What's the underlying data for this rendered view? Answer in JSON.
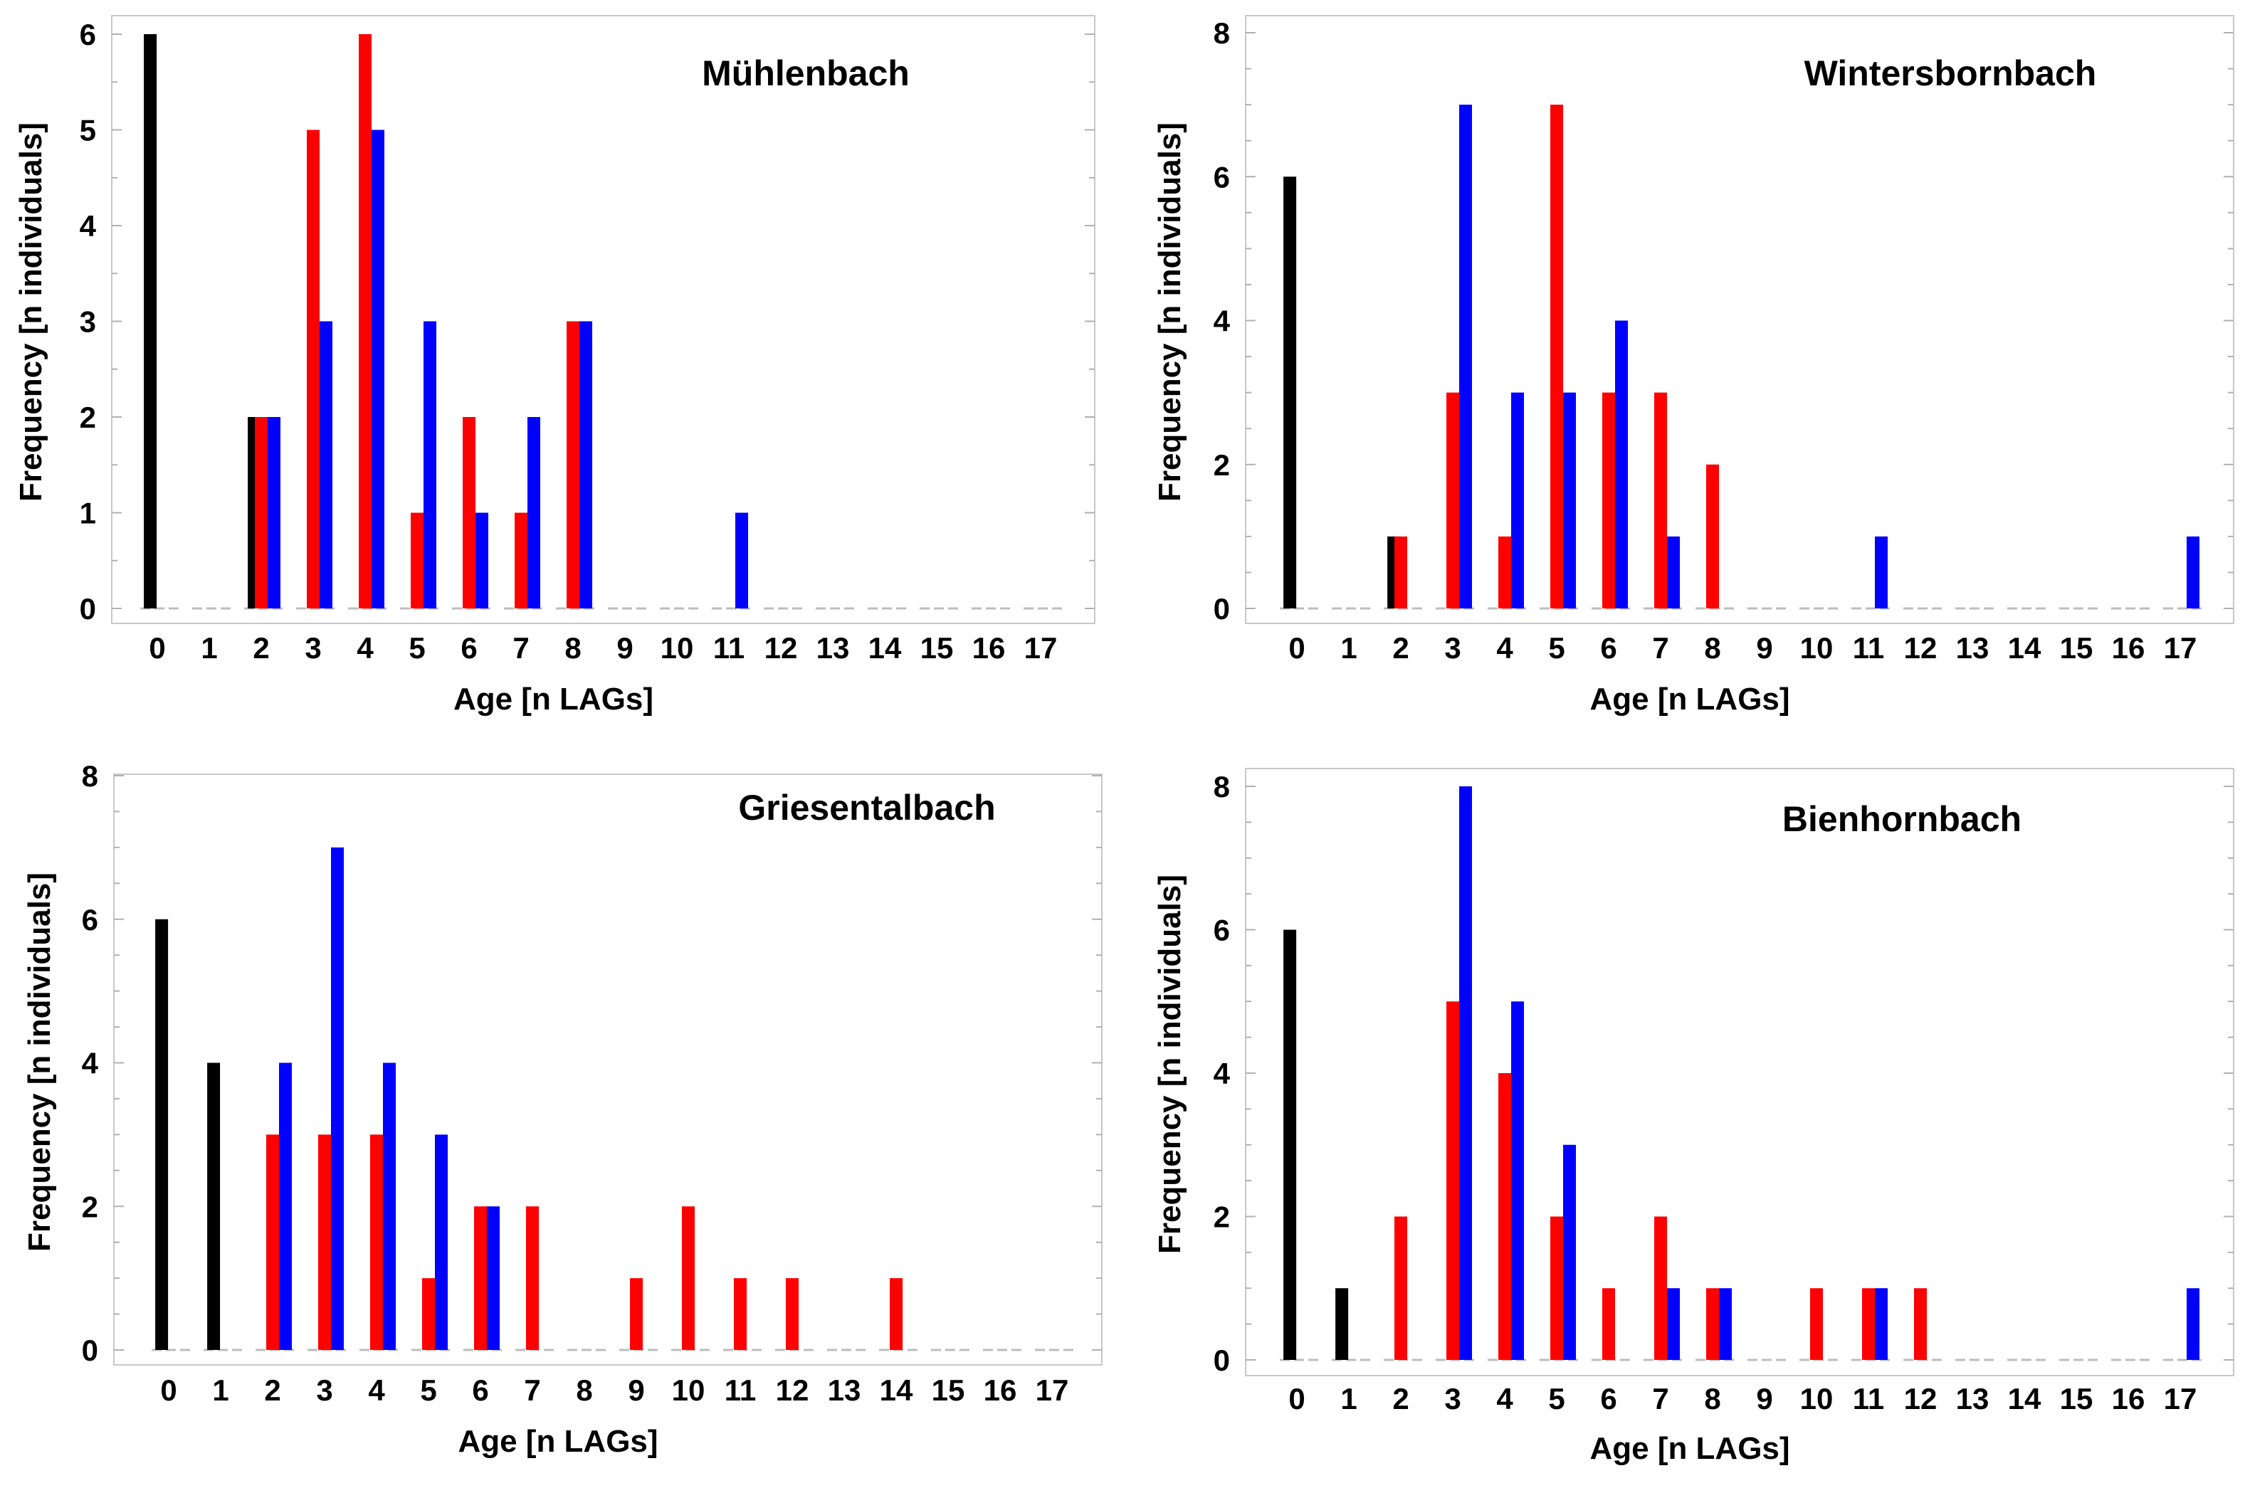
{
  "chart_data": [
    {
      "type": "bar",
      "title": "Mühlenbach",
      "xlabel": "Age [n LAGs]",
      "ylabel": "Frequency [n individuals]",
      "ylim": [
        0,
        6
      ],
      "yticks": [
        0,
        1,
        2,
        3,
        4,
        5,
        6
      ],
      "categories": [
        "0",
        "1",
        "2",
        "3",
        "4",
        "5",
        "6",
        "7",
        "8",
        "9",
        "10",
        "11",
        "12",
        "13",
        "14",
        "15",
        "16",
        "17"
      ],
      "series": [
        {
          "name": "black",
          "color": "#000000",
          "values": [
            6,
            0,
            2,
            0,
            0,
            0,
            0,
            0,
            0,
            0,
            0,
            0,
            0,
            0,
            0,
            0,
            0,
            0
          ]
        },
        {
          "name": "red",
          "color": "#ff0000",
          "values": [
            0,
            0,
            2,
            5,
            6,
            1,
            2,
            1,
            3,
            0,
            0,
            0,
            0,
            0,
            0,
            0,
            0,
            0
          ]
        },
        {
          "name": "blue",
          "color": "#0000ff",
          "values": [
            0,
            0,
            2,
            3,
            5,
            3,
            1,
            2,
            3,
            0,
            0,
            1,
            0,
            0,
            0,
            0,
            0,
            0
          ]
        }
      ]
    },
    {
      "type": "bar",
      "title": "Wintersbornbach",
      "xlabel": "Age [n LAGs]",
      "ylabel": "Frequency [n individuals]",
      "ylim": [
        0,
        8
      ],
      "yticks": [
        0,
        2,
        4,
        6,
        8
      ],
      "categories": [
        "0",
        "1",
        "2",
        "3",
        "4",
        "5",
        "6",
        "7",
        "8",
        "9",
        "10",
        "11",
        "12",
        "13",
        "14",
        "15",
        "16",
        "17"
      ],
      "series": [
        {
          "name": "black",
          "color": "#000000",
          "values": [
            6,
            0,
            1,
            0,
            0,
            0,
            0,
            0,
            0,
            0,
            0,
            0,
            0,
            0,
            0,
            0,
            0,
            0
          ]
        },
        {
          "name": "red",
          "color": "#ff0000",
          "values": [
            0,
            0,
            1,
            3,
            1,
            7,
            3,
            3,
            2,
            0,
            0,
            0,
            0,
            0,
            0,
            0,
            0,
            0
          ]
        },
        {
          "name": "blue",
          "color": "#0000ff",
          "values": [
            0,
            0,
            0,
            7,
            3,
            3,
            4,
            1,
            0,
            0,
            0,
            1,
            0,
            0,
            0,
            0,
            0,
            1
          ]
        }
      ]
    },
    {
      "type": "bar",
      "title": "Griesentalbach",
      "xlabel": "Age [n LAGs]",
      "ylabel": "Frequency [n individuals]",
      "ylim": [
        0,
        8
      ],
      "yticks": [
        0,
        2,
        4,
        6,
        8
      ],
      "categories": [
        "0",
        "1",
        "2",
        "3",
        "4",
        "5",
        "6",
        "7",
        "8",
        "9",
        "10",
        "11",
        "12",
        "13",
        "14",
        "15",
        "16",
        "17"
      ],
      "series": [
        {
          "name": "black",
          "color": "#000000",
          "values": [
            6,
            4,
            0,
            0,
            0,
            0,
            0,
            0,
            0,
            0,
            0,
            0,
            0,
            0,
            0,
            0,
            0,
            0
          ]
        },
        {
          "name": "red",
          "color": "#ff0000",
          "values": [
            0,
            0,
            3,
            3,
            3,
            1,
            2,
            2,
            0,
            1,
            2,
            1,
            1,
            0,
            1,
            0,
            0,
            0
          ]
        },
        {
          "name": "blue",
          "color": "#0000ff",
          "values": [
            0,
            0,
            4,
            7,
            4,
            3,
            2,
            0,
            0,
            0,
            0,
            0,
            0,
            0,
            0,
            0,
            0,
            0
          ]
        }
      ]
    },
    {
      "type": "bar",
      "title": "Bienhornbach",
      "xlabel": "Age [n LAGs]",
      "ylabel": "Frequency [n individuals]",
      "ylim": [
        0,
        8
      ],
      "yticks": [
        0,
        2,
        4,
        6,
        8
      ],
      "categories": [
        "0",
        "1",
        "2",
        "3",
        "4",
        "5",
        "6",
        "7",
        "8",
        "9",
        "10",
        "11",
        "12",
        "13",
        "14",
        "15",
        "16",
        "17"
      ],
      "series": [
        {
          "name": "black",
          "color": "#000000",
          "values": [
            6,
            1,
            0,
            0,
            0,
            0,
            0,
            0,
            0,
            0,
            0,
            0,
            0,
            0,
            0,
            0,
            0,
            0
          ]
        },
        {
          "name": "red",
          "color": "#ff0000",
          "values": [
            0,
            0,
            2,
            5,
            4,
            2,
            1,
            2,
            1,
            0,
            1,
            1,
            1,
            0,
            0,
            0,
            0,
            0
          ]
        },
        {
          "name": "blue",
          "color": "#0000ff",
          "values": [
            0,
            0,
            0,
            8,
            5,
            3,
            0,
            1,
            1,
            0,
            0,
            1,
            0,
            0,
            0,
            0,
            0,
            1
          ]
        }
      ]
    }
  ]
}
